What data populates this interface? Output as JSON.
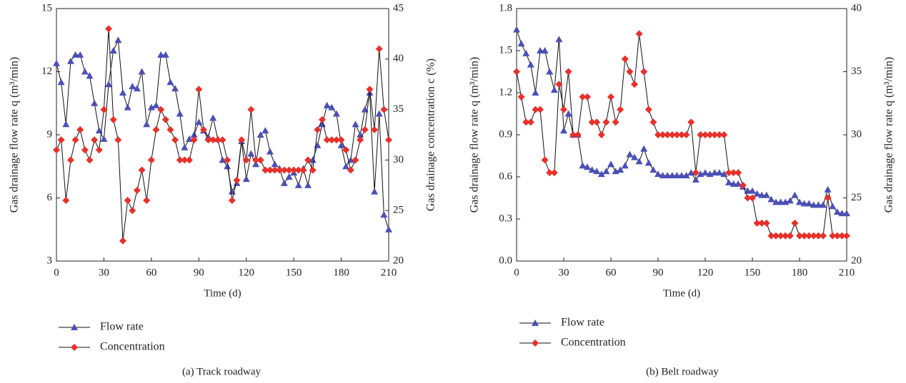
{
  "chart_data": [
    {
      "type": "line",
      "caption": "(a) Track roadway",
      "x_label": "Time (d)",
      "y_label": "Gas drainage flow rate q (m³/min)",
      "y2_label": "Gas drainage concentration c (%)",
      "x": [
        0,
        3,
        6,
        9,
        12,
        15,
        18,
        21,
        24,
        27,
        30,
        33,
        36,
        39,
        42,
        45,
        48,
        51,
        54,
        57,
        60,
        63,
        66,
        69,
        72,
        75,
        78,
        81,
        84,
        87,
        90,
        93,
        96,
        99,
        102,
        105,
        108,
        111,
        114,
        117,
        120,
        123,
        126,
        129,
        132,
        135,
        138,
        141,
        144,
        147,
        150,
        153,
        156,
        159,
        162,
        165,
        168,
        171,
        174,
        177,
        180,
        183,
        186,
        189,
        192,
        195,
        198,
        201,
        204,
        207,
        210
      ],
      "xlim": [
        0,
        210
      ],
      "xticks": [
        0,
        30,
        60,
        90,
        120,
        150,
        180,
        210
      ],
      "ylim": [
        3,
        15
      ],
      "yticks": [
        3,
        6,
        9,
        12,
        15
      ],
      "y2lim": [
        20,
        45
      ],
      "y2ticks": [
        20,
        25,
        30,
        35,
        40,
        45
      ],
      "series": [
        {
          "name": "Flow rate",
          "color": "#4b4fb8",
          "marker": "triangle",
          "axis": "y",
          "values": [
            12.4,
            11.5,
            9.5,
            12.5,
            12.8,
            12.8,
            12.0,
            11.8,
            10.5,
            9.2,
            8.8,
            11.4,
            13.0,
            13.5,
            11.0,
            10.3,
            11.3,
            11.2,
            12.0,
            9.5,
            10.3,
            10.4,
            12.8,
            12.8,
            11.5,
            11.2,
            10.0,
            8.4,
            8.8,
            9.0,
            9.6,
            9.2,
            8.9,
            9.8,
            8.8,
            7.8,
            7.5,
            6.3,
            6.7,
            8.7,
            6.9,
            8.1,
            7.6,
            9.0,
            9.2,
            8.2,
            7.6,
            7.4,
            6.7,
            7.0,
            7.2,
            6.6,
            7.4,
            6.6,
            7.8,
            8.5,
            9.5,
            10.4,
            10.3,
            10.0,
            8.5,
            7.5,
            7.8,
            9.5,
            9.0,
            10.2,
            11.0,
            6.3,
            10.0,
            5.2,
            4.5
          ]
        },
        {
          "name": "Concentration",
          "color": "#e8302a",
          "marker": "diamond",
          "axis": "y2",
          "values": [
            31,
            32,
            26,
            30,
            32,
            33,
            31,
            30,
            32,
            31,
            35,
            43,
            34,
            32,
            22,
            26,
            25,
            27,
            29,
            26,
            30,
            33,
            35,
            34,
            33,
            32,
            30,
            30,
            30,
            32,
            37,
            33,
            32,
            32,
            32,
            32,
            30,
            26,
            28,
            32,
            30,
            35,
            30,
            30,
            29,
            29,
            29,
            29,
            29,
            29,
            29,
            29,
            29,
            30,
            29,
            33,
            34,
            32,
            32,
            32,
            32,
            31,
            29,
            30,
            32,
            33,
            37,
            33,
            41,
            35,
            32
          ]
        }
      ]
    },
    {
      "type": "line",
      "caption": "(b) Belt roadway",
      "x_label": "Time (d)",
      "y_label": "Gas drainage flow rate q (m³/min)",
      "y2_label": "Gas drainage flow rate q (m³/min)",
      "x": [
        0,
        3,
        6,
        9,
        12,
        15,
        18,
        21,
        24,
        27,
        30,
        33,
        36,
        39,
        42,
        45,
        48,
        51,
        54,
        57,
        60,
        63,
        66,
        69,
        72,
        75,
        78,
        81,
        84,
        87,
        90,
        93,
        96,
        99,
        102,
        105,
        108,
        111,
        114,
        117,
        120,
        123,
        126,
        129,
        132,
        135,
        138,
        141,
        144,
        147,
        150,
        153,
        156,
        159,
        162,
        165,
        168,
        171,
        174,
        177,
        180,
        183,
        186,
        189,
        192,
        195,
        198,
        201,
        204,
        207,
        210
      ],
      "xlim": [
        0,
        210
      ],
      "xticks": [
        0,
        30,
        60,
        90,
        120,
        150,
        180,
        210
      ],
      "ylim": [
        0,
        1.8
      ],
      "yticks": [
        {
          "value": 0,
          "label": "0.0"
        },
        0.3,
        0.6,
        0.9,
        1.2,
        1.5,
        1.8
      ],
      "y2lim": [
        20,
        40
      ],
      "y2ticks": [
        20,
        25,
        30,
        35,
        40
      ],
      "series": [
        {
          "name": "Flow rate",
          "color": "#4b4fb8",
          "marker": "triangle",
          "axis": "y",
          "values": [
            1.65,
            1.55,
            1.48,
            1.4,
            1.2,
            1.5,
            1.5,
            1.35,
            1.22,
            1.58,
            0.93,
            1.05,
            0.9,
            0.9,
            0.68,
            0.67,
            0.65,
            0.64,
            0.62,
            0.64,
            0.69,
            0.64,
            0.65,
            0.68,
            0.76,
            0.74,
            0.71,
            0.8,
            0.7,
            0.65,
            0.62,
            0.61,
            0.61,
            0.61,
            0.61,
            0.61,
            0.61,
            0.63,
            0.58,
            0.62,
            0.63,
            0.62,
            0.63,
            0.63,
            0.62,
            0.56,
            0.55,
            0.55,
            0.53,
            0.5,
            0.5,
            0.48,
            0.47,
            0.47,
            0.44,
            0.42,
            0.42,
            0.42,
            0.43,
            0.47,
            0.42,
            0.41,
            0.41,
            0.4,
            0.4,
            0.4,
            0.51,
            0.39,
            0.35,
            0.34,
            0.34
          ]
        },
        {
          "name": "Concentration",
          "color": "#e8302a",
          "marker": "diamond",
          "axis": "y2",
          "values": [
            35,
            33,
            31,
            31,
            32,
            32,
            28,
            27,
            27,
            34,
            32,
            35,
            30,
            30,
            33,
            33,
            31,
            31,
            30,
            31,
            33,
            31,
            32,
            36,
            35,
            34,
            38,
            35,
            32,
            31,
            30,
            30,
            30,
            30,
            30,
            30,
            30,
            31,
            27,
            30,
            30,
            30,
            30,
            30,
            30,
            27,
            27,
            27,
            26,
            25,
            25,
            23,
            23,
            23,
            22,
            22,
            22,
            22,
            22,
            23,
            22,
            22,
            22,
            22,
            22,
            22,
            25,
            22,
            22,
            22,
            22
          ]
        }
      ]
    }
  ]
}
